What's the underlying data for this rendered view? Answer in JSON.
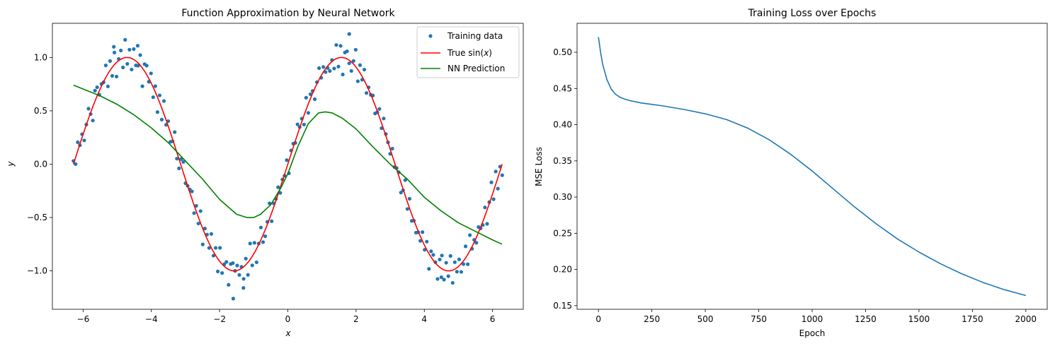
{
  "chart_data": [
    {
      "type": "scatter+line",
      "title": "Function Approximation by Neural Network",
      "xlabel": "x",
      "ylabel": "y",
      "xlim": [
        -6.9,
        6.9
      ],
      "ylim": [
        -1.36,
        1.32
      ],
      "xticks": [
        -6,
        -4,
        -2,
        0,
        2,
        4,
        6
      ],
      "yticks": [
        -1.0,
        -0.5,
        0.0,
        0.5,
        1.0
      ],
      "xtick_labels": [
        "−6",
        "−4",
        "−2",
        "0",
        "2",
        "4",
        "6"
      ],
      "ytick_labels": [
        "−1.0",
        "−0.5",
        "0.0",
        "0.5",
        "1.0"
      ],
      "legend": {
        "position": "upper-right",
        "entries": [
          {
            "label": "Training data",
            "prefix": "Training data",
            "math": "",
            "suffix": ""
          },
          {
            "label": "True sin(x)",
            "prefix": "True sin(",
            "math": "x",
            "suffix": ")"
          },
          {
            "label": "NN Prediction",
            "prefix": "NN Prediction",
            "math": "",
            "suffix": ""
          }
        ]
      },
      "colors": {
        "scatter": "#1f77b4",
        "true": "#ff0000",
        "nn": "#008000"
      },
      "scatter": {
        "name": "Training data",
        "x_range": [
          -6.283,
          6.283
        ],
        "n_points": 200,
        "noise_pattern": [
          0.03,
          -0.08,
          0.11,
          -0.05,
          0.07,
          -0.12,
          0.02,
          0.09,
          -0.03,
          -0.1,
          0.06,
          0.12,
          -0.07,
          0.04,
          -0.01,
          0.1,
          -0.09,
          0.05,
          -0.04,
          0.08,
          -0.11,
          0.01,
          0.07,
          -0.06,
          0.13,
          -0.02,
          0.04,
          -0.08,
          0.09,
          -0.05,
          0.0,
          0.06,
          -0.13,
          0.03,
          0.11,
          -0.04,
          0.08,
          -0.07,
          0.02,
          -0.1
        ],
        "outliers": [
          {
            "x": -5.1,
            "y": 1.1
          },
          {
            "x": -4.4,
            "y": 1.11
          },
          {
            "x": -1.6,
            "y": -1.26
          },
          {
            "x": -1.3,
            "y": -1.16
          },
          {
            "x": 1.8,
            "y": 1.22
          },
          {
            "x": 4.5,
            "y": -1.06
          }
        ]
      },
      "series": [
        {
          "name": "True sin(x)",
          "function": "sin",
          "x_range": [
            -6.283,
            6.283
          ]
        },
        {
          "name": "NN Prediction",
          "x": [
            -6.28,
            -5.5,
            -5.0,
            -4.5,
            -4.0,
            -3.5,
            -3.0,
            -2.5,
            -2.0,
            -1.5,
            -1.2,
            -1.0,
            -0.8,
            -0.5,
            -0.2,
            0.0,
            0.3,
            0.6,
            0.9,
            1.1,
            1.3,
            1.6,
            2.0,
            2.5,
            3.0,
            3.5,
            4.0,
            4.5,
            5.0,
            5.5,
            6.0,
            6.28
          ],
          "y": [
            0.74,
            0.64,
            0.56,
            0.46,
            0.34,
            0.2,
            0.03,
            -0.14,
            -0.33,
            -0.47,
            -0.5,
            -0.5,
            -0.47,
            -0.38,
            -0.22,
            -0.09,
            0.17,
            0.38,
            0.48,
            0.49,
            0.48,
            0.43,
            0.33,
            0.16,
            0.0,
            -0.14,
            -0.31,
            -0.44,
            -0.55,
            -0.63,
            -0.71,
            -0.75
          ]
        }
      ]
    },
    {
      "type": "line",
      "title": "Training Loss over Epochs",
      "xlabel": "Epoch",
      "ylabel": "MSE Loss",
      "xlim": [
        -100,
        2100
      ],
      "ylim": [
        0.145,
        0.54
      ],
      "xticks": [
        0,
        250,
        500,
        750,
        1000,
        1250,
        1500,
        1750,
        2000
      ],
      "yticks": [
        0.15,
        0.2,
        0.25,
        0.3,
        0.35,
        0.4,
        0.45,
        0.5
      ],
      "xtick_labels": [
        "0",
        "250",
        "500",
        "750",
        "1000",
        "1250",
        "1500",
        "1750",
        "2000"
      ],
      "ytick_labels": [
        "0.15",
        "0.20",
        "0.25",
        "0.30",
        "0.35",
        "0.40",
        "0.45",
        "0.50"
      ],
      "colors": {
        "line": "#1f77b4"
      },
      "series": [
        {
          "name": "loss",
          "x": [
            0,
            10,
            20,
            40,
            60,
            80,
            100,
            125,
            150,
            200,
            250,
            300,
            400,
            500,
            600,
            700,
            800,
            900,
            1000,
            1100,
            1200,
            1300,
            1400,
            1500,
            1600,
            1700,
            1800,
            1900,
            2000
          ],
          "y": [
            0.521,
            0.5,
            0.483,
            0.462,
            0.449,
            0.442,
            0.438,
            0.435,
            0.433,
            0.43,
            0.428,
            0.426,
            0.421,
            0.415,
            0.407,
            0.395,
            0.379,
            0.359,
            0.336,
            0.311,
            0.286,
            0.263,
            0.242,
            0.224,
            0.208,
            0.194,
            0.182,
            0.172,
            0.164
          ]
        }
      ]
    }
  ]
}
